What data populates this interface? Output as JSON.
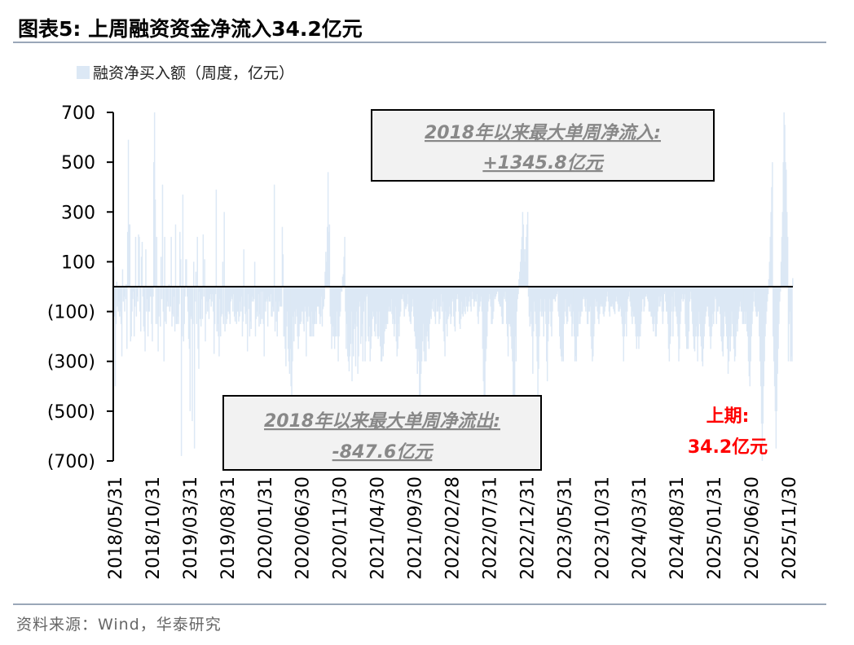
{
  "title": "图表5:   上周融资资金净流入34.2亿元",
  "source": "资料来源：Wind，华泰研究",
  "colors": {
    "bar": "#dce8f5",
    "axis": "#000000",
    "highlight": "#ff0000",
    "rule": "#9aa7b8"
  },
  "chart_data": {
    "type": "bar",
    "legend": [
      "融资净买入额（周度，亿元）"
    ],
    "ylim": [
      -700,
      700
    ],
    "yticks": [
      {
        "v": 700,
        "label": "700"
      },
      {
        "v": 500,
        "label": "500"
      },
      {
        "v": 300,
        "label": "300"
      },
      {
        "v": 100,
        "label": "100"
      },
      {
        "v": -100,
        "label": "(100)"
      },
      {
        "v": -300,
        "label": "(300)"
      },
      {
        "v": -500,
        "label": "(500)"
      },
      {
        "v": -700,
        "label": "(700)"
      }
    ],
    "xticks": [
      "2018/05/31",
      "2018/10/31",
      "2019/03/31",
      "2019/08/31",
      "2020/01/31",
      "2020/06/30",
      "2020/11/30",
      "2021/04/30",
      "2021/09/30",
      "2022/02/28",
      "2022/07/31",
      "2022/12/31",
      "2023/05/31",
      "2023/10/31",
      "2024/03/31",
      "2024/08/31",
      "2025/01/31",
      "2025/06/30",
      "2025/11/30"
    ],
    "series": [
      {
        "values": [
          80,
          -120,
          -400,
          -150,
          20,
          -80,
          -100,
          -60,
          -120,
          -100,
          -150,
          -280,
          70,
          -60,
          -40,
          -100,
          -50,
          10,
          -250,
          220,
          590,
          250,
          250,
          -220,
          -200,
          -100,
          -50,
          -20,
          -200,
          -80,
          200,
          -120,
          -40,
          -60,
          210,
          200,
          -100,
          -180,
          120,
          180,
          -40,
          -160,
          -180,
          -260,
          150,
          -100,
          -50,
          -200,
          -100,
          -100,
          -40,
          -40,
          -150,
          -220,
          -40,
          500,
          700,
          350,
          -150,
          200,
          -150,
          -260,
          -120,
          0,
          -160,
          120,
          -50,
          410,
          -100,
          -300,
          200,
          -140,
          -150,
          -80,
          -60,
          -80,
          10,
          -100,
          -80,
          200,
          -160,
          -110,
          -120,
          -40,
          -180,
          250,
          -150,
          -150,
          -120,
          -150,
          -70,
          220,
          110,
          -680,
          -200,
          370,
          -220,
          -150,
          -40,
          110,
          110,
          -40,
          -100,
          -210,
          -250,
          -500,
          -120,
          -130,
          -540,
          -150,
          100,
          -650,
          -60,
          60,
          -150,
          200,
          -250,
          -330,
          -20,
          -130,
          -160,
          -50,
          -130,
          210,
          -40,
          110,
          -220,
          -110,
          -60,
          -100,
          -60,
          -130,
          -50,
          -30,
          -80,
          -60,
          -30,
          -100,
          -270,
          -150,
          -30,
          390,
          -180,
          -150,
          -200,
          -280,
          -50,
          -200,
          -120,
          -110,
          100,
          -150,
          300,
          -180,
          -120,
          -150,
          -130,
          -100,
          -100,
          -110,
          -150,
          -60,
          -40,
          -50,
          -100,
          -30,
          -120,
          -140,
          -110,
          -150,
          -100,
          -100,
          -140,
          -120,
          -60,
          -100,
          -40,
          -200,
          -140,
          150,
          -80,
          -110,
          -150,
          -100,
          -260,
          -30,
          -90,
          -200,
          -140,
          -170,
          -60,
          -40,
          -60,
          -50,
          100,
          -200,
          -130,
          -100,
          -120,
          -30,
          -160,
          -110,
          -150,
          -20,
          -130,
          -20,
          -150,
          -280,
          -60,
          -100,
          -60,
          -50,
          -160,
          -40,
          -60,
          -60,
          -30,
          -120,
          -120,
          -80,
          -100,
          410,
          -180,
          -60,
          -140,
          -200,
          -100,
          -100,
          -60,
          -80,
          -80,
          -80,
          240,
          130,
          -200,
          -200,
          -250,
          -320,
          -160,
          -100,
          -250,
          -300,
          -350,
          -250,
          -400,
          -700,
          -300,
          -120,
          -220,
          -100,
          -150,
          -90,
          -120,
          -200,
          -250,
          -200,
          -150,
          -150,
          -140,
          -100,
          -100,
          -150,
          -180,
          -80,
          -100,
          -280,
          -120,
          -140,
          -80,
          -120,
          -200,
          -200,
          -100,
          -200,
          -150,
          -200,
          -150,
          -150,
          -100,
          -150,
          -80,
          -80,
          -80,
          -110,
          -150,
          -120,
          -40,
          -160,
          -90,
          -80,
          -50,
          60,
          140,
          100,
          240,
          460,
          220,
          250,
          -120,
          -150,
          -250,
          -200,
          -160,
          -200,
          -250,
          -200,
          -200,
          -100,
          -200,
          -300,
          -200,
          -120,
          -100,
          -20,
          -20,
          40,
          50,
          120,
          200,
          -100,
          -250,
          -150,
          -280,
          -300,
          -340,
          -280,
          -230,
          -100,
          -380,
          -230,
          -280,
          -170,
          -150,
          -320,
          -100,
          -160,
          -350,
          -280,
          -80,
          -60,
          -230,
          -200,
          -150,
          -300,
          -100,
          -60,
          -300,
          -220,
          -40,
          -30,
          -200,
          -220,
          -160,
          -300,
          -250,
          -200,
          -130,
          -100,
          -120,
          -180,
          -200,
          -150,
          -100,
          -200,
          -210,
          -200,
          -100,
          -240,
          -300,
          -300,
          -250,
          -280,
          -230,
          -180,
          -150,
          -170,
          -150,
          -150,
          -100,
          -80,
          -100,
          -100,
          -50,
          -110,
          -150,
          -130,
          -200,
          -150,
          -80,
          -220,
          -280,
          -250,
          -150,
          -200,
          -120,
          -100,
          -50,
          -50,
          -30,
          -60,
          -120,
          -80,
          -90,
          -80,
          -70,
          -30,
          -100,
          -120,
          -140,
          -150,
          -100,
          -80,
          -50,
          -120,
          -180,
          -200,
          -250,
          -250,
          -350,
          -250,
          -300,
          -500,
          -650,
          -350,
          -300,
          -220,
          -150,
          -260,
          -300,
          -200,
          -300,
          -200,
          -180,
          -220,
          -250,
          -150,
          -120,
          -130,
          -90,
          -60,
          -100,
          -50,
          -120,
          -150,
          -50,
          -100,
          -100,
          -80,
          -150,
          -130,
          -80,
          -30,
          -100,
          -60,
          -180,
          -220,
          -280,
          -100,
          -150,
          -200,
          -130,
          -120,
          -80,
          -110,
          -150,
          -120,
          -60,
          -50,
          -120,
          -160,
          -180,
          -100,
          -50,
          -30,
          -50,
          -100,
          -150,
          -170,
          -130,
          -60,
          -110,
          -120,
          -80,
          -100,
          -110,
          -40,
          -80,
          -100,
          -80,
          -60,
          -40,
          -80,
          -100,
          -50,
          -20,
          -50,
          -80,
          -60,
          -50,
          -60,
          -30,
          -120,
          -150,
          -100,
          -80,
          -60,
          -40,
          -100,
          -250,
          -380,
          -500,
          -700,
          -300,
          -250,
          -200,
          -100,
          -60,
          -30,
          -50,
          -80,
          -150,
          -150,
          -130,
          -100,
          -40,
          -50,
          -40,
          -30,
          -20,
          -20,
          -60,
          -70,
          -80,
          -80,
          -120,
          -150,
          -150,
          -40,
          -50,
          -20,
          -60,
          -150,
          -200,
          -280,
          -150,
          -150,
          -160,
          -200,
          -250,
          -300,
          -450,
          -500,
          -500,
          -200,
          -300,
          -100,
          -50,
          -30,
          30,
          60,
          100,
          150,
          200,
          300,
          250,
          150,
          100,
          150,
          200,
          250,
          300,
          -40,
          -120,
          -160,
          -100,
          -150,
          -200,
          -350,
          -180,
          -60,
          -100,
          -150,
          -200,
          -300,
          -450,
          -330,
          -200,
          -100,
          -50,
          -120,
          -100,
          -120,
          -200,
          -50,
          -100,
          -150,
          -300,
          -380,
          -220,
          -150,
          -50,
          -100,
          -160,
          -200,
          -100,
          -50,
          -50,
          -50,
          -60,
          -40,
          -30,
          -20,
          -100,
          -120,
          -200,
          -250,
          -280,
          -300,
          -280,
          -300,
          -150,
          -100,
          -50,
          -120,
          -150,
          -140,
          -80,
          -80,
          -100,
          -70,
          -120,
          -200,
          -150,
          -100,
          -200,
          -300,
          -280,
          -300,
          -200,
          -200,
          -150,
          -100,
          -150,
          -120,
          -100,
          -100,
          -50,
          -40,
          -50,
          -80,
          -100,
          -50,
          -150,
          -150,
          -100,
          -100,
          -80,
          -200,
          -250,
          -300,
          -280,
          -200,
          -150,
          -50,
          -80,
          -60,
          -100,
          -130,
          -150,
          -110,
          -80,
          -70,
          -80,
          -80,
          -110,
          -120,
          -100,
          -80,
          -60,
          -40,
          -20,
          -60,
          -100,
          -120,
          -80,
          -80,
          -80,
          -70,
          -90,
          -100,
          -110,
          -60,
          -40,
          -60,
          -70,
          -100,
          -100,
          -90,
          -80,
          -120,
          -150,
          -200,
          -300,
          -200,
          -150,
          -100,
          -200,
          -100,
          -50,
          -40,
          -20,
          -60,
          -80,
          -120,
          -150,
          -100,
          -120,
          -120,
          -150,
          -200,
          -250,
          -200,
          -200,
          -250,
          -200,
          -200,
          -150,
          -100,
          -50,
          -50,
          -100,
          -80,
          -40,
          -40,
          -30,
          -50,
          -60,
          -100,
          -100,
          -100,
          -120,
          -120,
          -150,
          -180,
          -150,
          -120,
          -200,
          -200,
          -150,
          -100,
          -80,
          -40,
          -80,
          -60,
          -40,
          -100,
          -150,
          -100,
          -30,
          -20,
          -60,
          -100,
          -100,
          -150,
          -250,
          -300,
          -230,
          -200,
          -100,
          -40,
          -200,
          -100,
          -20,
          -80,
          -100,
          -120,
          -150,
          -200,
          -300,
          -250,
          -150,
          -100,
          -50,
          -30,
          -60,
          -50,
          -30,
          -150,
          -200,
          -250,
          -250,
          -250,
          -180,
          -60,
          -20,
          -50,
          -100,
          -150,
          -200,
          -250,
          -260,
          -200,
          -160,
          -200,
          -300,
          -200,
          -100,
          -150,
          -200,
          -240,
          -300,
          -320,
          -250,
          -200,
          -150,
          -120,
          -100,
          -80,
          -80,
          -120,
          -160,
          -200,
          -250,
          -200,
          -160,
          -110,
          -150,
          -100,
          -40,
          -50,
          -150,
          -100,
          -100,
          -80,
          -80,
          -110,
          -200,
          -220,
          -260,
          -280,
          -200,
          -100,
          -120,
          -150,
          -200,
          -250,
          -350,
          -300,
          -200,
          -260,
          -200,
          -100,
          -150,
          -200,
          -250,
          -300,
          -280,
          -200,
          -150,
          -180,
          -130,
          -100,
          -80,
          -60,
          -100,
          -100,
          -150,
          -150,
          -100,
          -150,
          -150,
          -100,
          -180,
          -200,
          -300,
          -360,
          -400,
          -300,
          -200,
          -150,
          -100,
          -60,
          -20,
          -80,
          -100,
          -120,
          -120,
          -100,
          -100,
          -200,
          -300,
          -400,
          -550,
          -700,
          -550,
          -400,
          -300,
          -200,
          -150,
          -100,
          -60,
          -30,
          30,
          100,
          200,
          300,
          400,
          500,
          -200,
          -300,
          -400,
          -500,
          -650,
          -500,
          -350,
          -250,
          -150,
          -60,
          -20,
          100,
          200,
          300,
          500,
          700,
          650,
          500,
          470,
          300,
          200,
          -300,
          -150,
          -100,
          -300,
          -280,
          -300,
          34.2
        ]
      }
    ],
    "annotations": [
      {
        "lines": [
          "2018年以来最大单周净流入:",
          "+1345.8亿元"
        ]
      },
      {
        "lines": [
          "2018年以来最大单周净流出:",
          "-847.6亿元"
        ]
      },
      {
        "lines": [
          "上期:",
          "34.2亿元"
        ]
      }
    ]
  }
}
